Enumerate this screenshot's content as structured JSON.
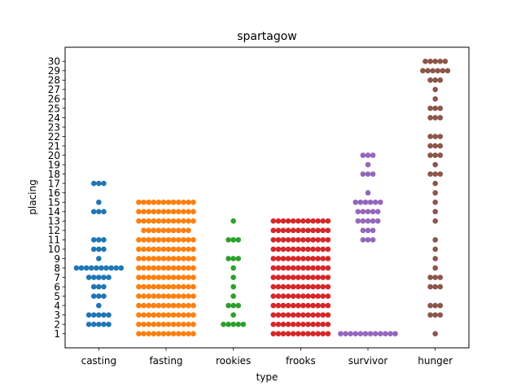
{
  "chart_data": {
    "type": "scatter",
    "subtype": "swarm",
    "title": "spartagow",
    "xlabel": "type",
    "ylabel": "placing",
    "categories": [
      "casting",
      "fasting",
      "rookies",
      "frooks",
      "survivor",
      "hunger"
    ],
    "yticks": [
      1,
      2,
      3,
      4,
      5,
      6,
      7,
      8,
      9,
      10,
      11,
      12,
      13,
      14,
      15,
      16,
      17,
      18,
      19,
      20,
      21,
      22,
      23,
      24,
      25,
      26,
      27,
      28,
      29,
      30
    ],
    "ylim": [
      -0.5,
      31.5
    ],
    "grid": false,
    "colors": [
      "#1f77b4",
      "#ff7f0e",
      "#2ca02c",
      "#d62728",
      "#9467bd",
      "#8c564b"
    ],
    "series": [
      {
        "category": "casting",
        "counts": {
          "2": 5,
          "3": 5,
          "4": 1,
          "5": 3,
          "6": 3,
          "7": 5,
          "8": 10,
          "9": 1,
          "10": 3,
          "11": 3,
          "14": 3,
          "15": 1,
          "17": 3
        }
      },
      {
        "category": "fasting",
        "counts": {
          "1": 12,
          "2": 12,
          "3": 12,
          "4": 12,
          "5": 12,
          "6": 12,
          "7": 12,
          "8": 12,
          "9": 12,
          "10": 12,
          "11": 12,
          "12": 10,
          "13": 12,
          "14": 12,
          "15": 12
        }
      },
      {
        "category": "rookies",
        "counts": {
          "2": 5,
          "3": 1,
          "4": 3,
          "5": 1,
          "6": 1,
          "7": 1,
          "8": 1,
          "9": 3,
          "11": 3,
          "13": 1
        }
      },
      {
        "category": "frooks",
        "counts": {
          "1": 12,
          "2": 12,
          "3": 12,
          "4": 12,
          "5": 12,
          "6": 12,
          "7": 12,
          "8": 12,
          "9": 12,
          "10": 12,
          "11": 12,
          "12": 12,
          "13": 12
        }
      },
      {
        "category": "survivor",
        "counts": {
          "1": 12,
          "11": 3,
          "12": 3,
          "13": 5,
          "14": 5,
          "15": 6,
          "16": 1,
          "18": 3,
          "19": 1,
          "20": 3
        }
      },
      {
        "category": "hunger",
        "counts": {
          "1": 1,
          "3": 3,
          "4": 3,
          "6": 3,
          "7": 3,
          "8": 1,
          "9": 1,
          "10": 1,
          "11": 1,
          "13": 1,
          "14": 1,
          "15": 1,
          "16": 1,
          "17": 1,
          "18": 3,
          "19": 1,
          "20": 3,
          "21": 3,
          "22": 3,
          "24": 3,
          "25": 3,
          "26": 1,
          "27": 1,
          "28": 3,
          "29": 6,
          "30": 5
        }
      }
    ]
  }
}
